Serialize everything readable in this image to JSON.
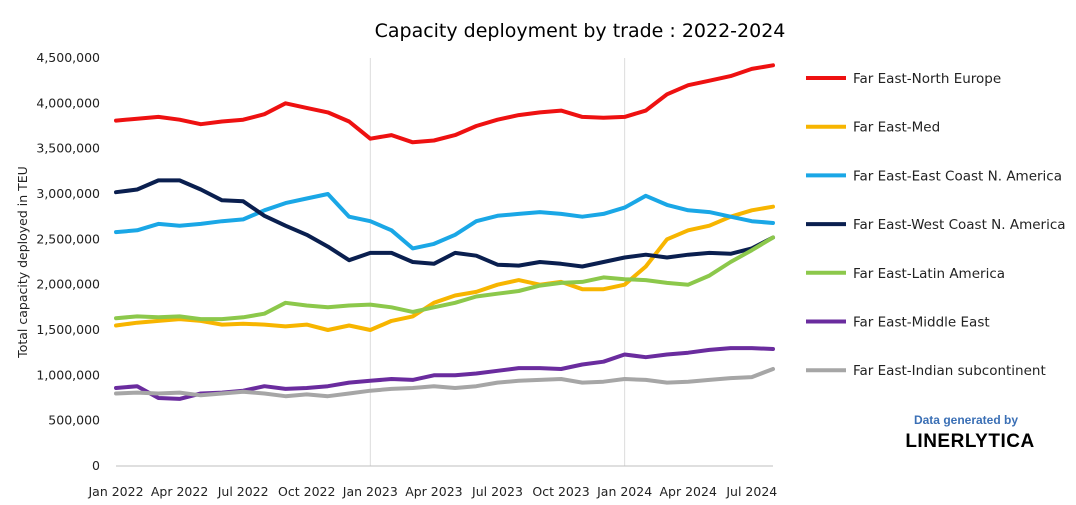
{
  "chart_data": {
    "type": "line",
    "title": "Capacity deployment by trade : 2022-2024",
    "ylabel": "Total capacity deployed in TEU",
    "xlabel": "",
    "ylim": [
      0,
      4500000
    ],
    "yticks": [
      "0",
      "500,000",
      "1,000,000",
      "1,500,000",
      "2,000,000",
      "2,500,000",
      "3,000,000",
      "3,500,000",
      "4,000,000",
      "4,500,000"
    ],
    "xticks": [
      "Jan 2022",
      "Apr 2022",
      "Jul 2022",
      "Oct 2022",
      "Jan 2023",
      "Apr 2023",
      "Jul 2023",
      "Oct 2023",
      "Jan 2024",
      "Apr 2024",
      "Jul 2024"
    ],
    "x_months": [
      "Jan 2022",
      "Feb 2022",
      "Mar 2022",
      "Apr 2022",
      "May 2022",
      "Jun 2022",
      "Jul 2022",
      "Aug 2022",
      "Sep 2022",
      "Oct 2022",
      "Nov 2022",
      "Dec 2022",
      "Jan 2023",
      "Feb 2023",
      "Mar 2023",
      "Apr 2023",
      "May 2023",
      "Jun 2023",
      "Jul 2023",
      "Aug 2023",
      "Sep 2023",
      "Oct 2023",
      "Nov 2023",
      "Dec 2023",
      "Jan 2024",
      "Feb 2024",
      "Mar 2024",
      "Apr 2024",
      "May 2024",
      "Jun 2024",
      "Jul 2024",
      "Aug 2024"
    ],
    "grid": "vertical at year boundaries",
    "legend_position": "right",
    "series": [
      {
        "name": "Far East-North Europe",
        "color": "#ee1111",
        "values": [
          3810000,
          3830000,
          3850000,
          3820000,
          3770000,
          3800000,
          3820000,
          3880000,
          4000000,
          3950000,
          3900000,
          3800000,
          3610000,
          3650000,
          3570000,
          3590000,
          3650000,
          3750000,
          3820000,
          3870000,
          3900000,
          3920000,
          3850000,
          3840000,
          3850000,
          3920000,
          4100000,
          4200000,
          4250000,
          4300000,
          4380000,
          4420000
        ]
      },
      {
        "name": "Far East-Med",
        "color": "#f7b500",
        "values": [
          1550000,
          1580000,
          1600000,
          1620000,
          1600000,
          1560000,
          1570000,
          1560000,
          1540000,
          1560000,
          1500000,
          1550000,
          1500000,
          1600000,
          1650000,
          1800000,
          1880000,
          1920000,
          2000000,
          2050000,
          2000000,
          2030000,
          1950000,
          1950000,
          2000000,
          2200000,
          2500000,
          2600000,
          2650000,
          2750000,
          2820000,
          2860000
        ]
      },
      {
        "name": "Far East-East Coast N. America",
        "color": "#1aa7e6",
        "values": [
          2580000,
          2600000,
          2670000,
          2650000,
          2670000,
          2700000,
          2720000,
          2820000,
          2900000,
          2950000,
          3000000,
          2750000,
          2700000,
          2600000,
          2400000,
          2450000,
          2550000,
          2700000,
          2760000,
          2780000,
          2800000,
          2780000,
          2750000,
          2780000,
          2850000,
          2980000,
          2880000,
          2820000,
          2800000,
          2750000,
          2700000,
          2680000
        ]
      },
      {
        "name": "Far East-West Coast N. America",
        "color": "#0a1f4f",
        "values": [
          3020000,
          3050000,
          3150000,
          3150000,
          3050000,
          2930000,
          2920000,
          2760000,
          2650000,
          2550000,
          2420000,
          2270000,
          2350000,
          2350000,
          2250000,
          2230000,
          2350000,
          2320000,
          2220000,
          2210000,
          2250000,
          2230000,
          2200000,
          2250000,
          2300000,
          2330000,
          2300000,
          2330000,
          2350000,
          2340000,
          2400000,
          2520000
        ]
      },
      {
        "name": "Far East-Latin America",
        "color": "#8cc84b",
        "values": [
          1630000,
          1650000,
          1640000,
          1650000,
          1620000,
          1620000,
          1640000,
          1680000,
          1800000,
          1770000,
          1750000,
          1770000,
          1780000,
          1750000,
          1700000,
          1750000,
          1800000,
          1870000,
          1900000,
          1930000,
          1990000,
          2020000,
          2030000,
          2080000,
          2060000,
          2050000,
          2020000,
          2000000,
          2100000,
          2250000,
          2380000,
          2520000
        ]
      },
      {
        "name": "Far East-Middle East",
        "color": "#6a2c9e",
        "values": [
          860000,
          880000,
          750000,
          740000,
          800000,
          810000,
          830000,
          880000,
          850000,
          860000,
          880000,
          920000,
          940000,
          960000,
          950000,
          1000000,
          1000000,
          1020000,
          1050000,
          1080000,
          1080000,
          1070000,
          1120000,
          1150000,
          1230000,
          1200000,
          1230000,
          1250000,
          1280000,
          1300000,
          1300000,
          1290000
        ]
      },
      {
        "name": "Far East-Indian subcontinent",
        "color": "#a6a6a6",
        "values": [
          800000,
          810000,
          800000,
          810000,
          780000,
          800000,
          820000,
          800000,
          770000,
          790000,
          770000,
          800000,
          830000,
          850000,
          860000,
          880000,
          860000,
          880000,
          920000,
          940000,
          950000,
          960000,
          920000,
          930000,
          960000,
          950000,
          920000,
          930000,
          950000,
          970000,
          980000,
          1070000
        ]
      }
    ]
  },
  "credit": {
    "line1": "Data generated by",
    "line2": "LINERLYTICA"
  }
}
